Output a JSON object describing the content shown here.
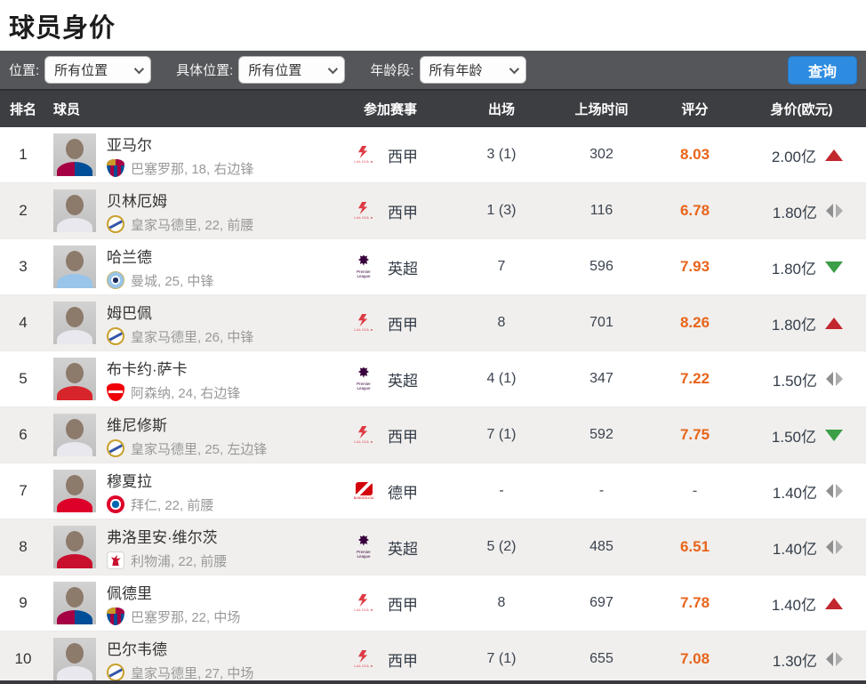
{
  "page": {
    "title": "球员身价"
  },
  "filters": {
    "position_label": "位置:",
    "position_value": "所有位置",
    "specific_label": "具体位置:",
    "specific_value": "所有位置",
    "age_label": "年龄段:",
    "age_value": "所有年龄",
    "search_button": "查询"
  },
  "table": {
    "headers": {
      "rank": "排名",
      "player": "球员",
      "league": "参加赛事",
      "appearances": "出场",
      "minutes": "上场时间",
      "rating": "评分",
      "value": "身价(欧元)"
    },
    "rows": [
      {
        "rank": "1",
        "name": "亚马尔",
        "club": "巴塞罗那, 18, 右边锋",
        "club_badge": "barcelona",
        "league": "西甲",
        "league_logo": "laliga",
        "apps": "3 (1)",
        "minutes": "302",
        "rating": "8.03",
        "value": "2.00亿",
        "trend": "up"
      },
      {
        "rank": "2",
        "name": "贝林厄姆",
        "club": "皇家马德里, 22, 前腰",
        "club_badge": "real-madrid",
        "league": "西甲",
        "league_logo": "laliga",
        "apps": "1 (3)",
        "minutes": "116",
        "rating": "6.78",
        "value": "1.80亿",
        "trend": "flat"
      },
      {
        "rank": "3",
        "name": "哈兰德",
        "club": "曼城, 25, 中锋",
        "club_badge": "man-city",
        "league": "英超",
        "league_logo": "premier-league",
        "apps": "7",
        "minutes": "596",
        "rating": "7.93",
        "value": "1.80亿",
        "trend": "down"
      },
      {
        "rank": "4",
        "name": "姆巴佩",
        "club": "皇家马德里, 26, 中锋",
        "club_badge": "real-madrid",
        "league": "西甲",
        "league_logo": "laliga",
        "apps": "8",
        "minutes": "701",
        "rating": "8.26",
        "value": "1.80亿",
        "trend": "up"
      },
      {
        "rank": "5",
        "name": "布卡约·萨卡",
        "club": "阿森纳, 24, 右边锋",
        "club_badge": "arsenal",
        "league": "英超",
        "league_logo": "premier-league",
        "apps": "4 (1)",
        "minutes": "347",
        "rating": "7.22",
        "value": "1.50亿",
        "trend": "flat"
      },
      {
        "rank": "6",
        "name": "维尼修斯",
        "club": "皇家马德里, 25, 左边锋",
        "club_badge": "real-madrid",
        "league": "西甲",
        "league_logo": "laliga",
        "apps": "7 (1)",
        "minutes": "592",
        "rating": "7.75",
        "value": "1.50亿",
        "trend": "down"
      },
      {
        "rank": "7",
        "name": "穆夏拉",
        "club": "拜仁, 22, 前腰",
        "club_badge": "bayern",
        "league": "德甲",
        "league_logo": "bundesliga",
        "apps": "-",
        "minutes": "-",
        "rating": "-",
        "value": "1.40亿",
        "trend": "flat"
      },
      {
        "rank": "8",
        "name": "弗洛里安·维尔茨",
        "club": "利物浦, 22, 前腰",
        "club_badge": "liverpool",
        "league": "英超",
        "league_logo": "premier-league",
        "apps": "5 (2)",
        "minutes": "485",
        "rating": "6.51",
        "value": "1.40亿",
        "trend": "flat"
      },
      {
        "rank": "9",
        "name": "佩德里",
        "club": "巴塞罗那, 22, 中场",
        "club_badge": "barcelona",
        "league": "西甲",
        "league_logo": "laliga",
        "apps": "8",
        "minutes": "697",
        "rating": "7.78",
        "value": "1.40亿",
        "trend": "up"
      },
      {
        "rank": "10",
        "name": "巴尔韦德",
        "club": "皇家马德里, 27, 中场",
        "club_badge": "real-madrid",
        "league": "西甲",
        "league_logo": "laliga",
        "apps": "7 (1)",
        "minutes": "655",
        "rating": "7.08",
        "value": "1.30亿",
        "trend": "flat"
      }
    ]
  },
  "colors": {
    "rating_orange": "#e8641b",
    "trend_up_red": "#c1272d",
    "trend_down_green": "#3c9e46",
    "trend_flat_gray": "#9a9a9a",
    "button_blue": "#2e8ce0",
    "filter_bar_gray": "#55565a",
    "table_header_gray": "#3d3e42"
  }
}
